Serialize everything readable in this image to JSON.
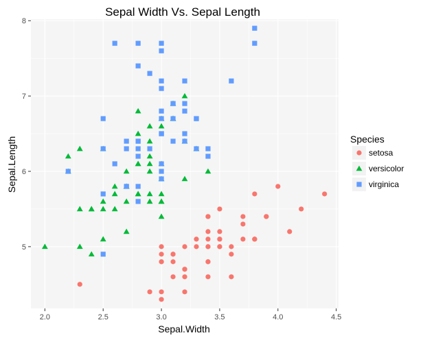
{
  "chart_data": {
    "type": "scatter",
    "title": "Sepal Width Vs. Sepal Length",
    "xlabel": "Sepal.Width",
    "ylabel": "Sepal.Length",
    "xlim": [
      1.88,
      4.52
    ],
    "ylim": [
      4.18,
      8.02
    ],
    "xticks": [
      2.0,
      2.5,
      3.0,
      3.5,
      4.0,
      4.5
    ],
    "xtick_labels": [
      "2.0",
      "2.5",
      "3.0",
      "3.5",
      "4.0",
      "4.5"
    ],
    "yticks": [
      5,
      6,
      7,
      8
    ],
    "ytick_labels": [
      "5",
      "6",
      "7",
      "8"
    ],
    "grid": true,
    "panel_background": "#f5f5f5",
    "grid_color": "#ffffff",
    "legend": {
      "title": "Species",
      "position": "right"
    },
    "series": [
      {
        "name": "setosa",
        "marker": "circle",
        "color": "#F8766D",
        "points": [
          [
            3.5,
            5.1
          ],
          [
            3.0,
            4.9
          ],
          [
            3.2,
            4.7
          ],
          [
            3.1,
            4.6
          ],
          [
            3.6,
            5.0
          ],
          [
            3.9,
            5.4
          ],
          [
            3.4,
            4.6
          ],
          [
            3.4,
            5.0
          ],
          [
            2.9,
            4.4
          ],
          [
            3.1,
            4.9
          ],
          [
            3.7,
            5.4
          ],
          [
            3.4,
            4.8
          ],
          [
            3.0,
            4.8
          ],
          [
            3.0,
            4.3
          ],
          [
            4.0,
            5.8
          ],
          [
            4.4,
            5.7
          ],
          [
            3.9,
            5.4
          ],
          [
            3.5,
            5.1
          ],
          [
            3.8,
            5.7
          ],
          [
            3.8,
            5.1
          ],
          [
            3.4,
            5.4
          ],
          [
            3.7,
            5.1
          ],
          [
            3.6,
            4.6
          ],
          [
            3.3,
            5.1
          ],
          [
            3.4,
            4.8
          ],
          [
            3.0,
            5.0
          ],
          [
            3.4,
            5.0
          ],
          [
            3.5,
            5.2
          ],
          [
            3.4,
            5.2
          ],
          [
            3.2,
            4.7
          ],
          [
            3.1,
            4.8
          ],
          [
            3.4,
            5.4
          ],
          [
            4.1,
            5.2
          ],
          [
            4.2,
            5.5
          ],
          [
            3.1,
            4.9
          ],
          [
            3.2,
            5.0
          ],
          [
            3.5,
            5.5
          ],
          [
            3.6,
            4.9
          ],
          [
            3.0,
            4.4
          ],
          [
            3.4,
            5.1
          ],
          [
            3.5,
            5.0
          ],
          [
            2.3,
            4.5
          ],
          [
            3.2,
            4.4
          ],
          [
            3.5,
            5.0
          ],
          [
            3.8,
            5.1
          ],
          [
            3.0,
            4.8
          ],
          [
            3.8,
            5.1
          ],
          [
            3.2,
            4.6
          ],
          [
            3.7,
            5.3
          ],
          [
            3.3,
            5.0
          ]
        ]
      },
      {
        "name": "versicolor",
        "marker": "triangle",
        "color": "#00BA38",
        "points": [
          [
            3.2,
            7.0
          ],
          [
            3.2,
            6.4
          ],
          [
            3.1,
            6.9
          ],
          [
            2.3,
            5.5
          ],
          [
            2.8,
            6.5
          ],
          [
            2.8,
            5.7
          ],
          [
            3.3,
            6.3
          ],
          [
            2.4,
            4.9
          ],
          [
            2.9,
            6.6
          ],
          [
            2.7,
            5.2
          ],
          [
            2.0,
            5.0
          ],
          [
            3.0,
            5.9
          ],
          [
            2.2,
            6.0
          ],
          [
            2.9,
            6.1
          ],
          [
            2.9,
            5.6
          ],
          [
            3.1,
            6.7
          ],
          [
            3.0,
            5.6
          ],
          [
            2.7,
            5.8
          ],
          [
            2.2,
            6.2
          ],
          [
            2.5,
            5.6
          ],
          [
            3.2,
            5.9
          ],
          [
            2.8,
            6.1
          ],
          [
            2.5,
            6.3
          ],
          [
            2.8,
            6.1
          ],
          [
            2.9,
            6.4
          ],
          [
            3.0,
            6.6
          ],
          [
            2.8,
            6.8
          ],
          [
            3.0,
            6.7
          ],
          [
            2.9,
            6.0
          ],
          [
            2.6,
            5.7
          ],
          [
            2.4,
            5.5
          ],
          [
            2.4,
            5.5
          ],
          [
            2.7,
            5.8
          ],
          [
            2.7,
            6.0
          ],
          [
            3.0,
            5.4
          ],
          [
            3.4,
            6.0
          ],
          [
            3.1,
            6.7
          ],
          [
            2.3,
            6.3
          ],
          [
            3.0,
            5.6
          ],
          [
            2.5,
            5.5
          ],
          [
            2.6,
            5.5
          ],
          [
            3.0,
            6.1
          ],
          [
            2.6,
            5.8
          ],
          [
            2.3,
            5.0
          ],
          [
            2.7,
            5.6
          ],
          [
            3.0,
            5.7
          ],
          [
            2.9,
            5.7
          ],
          [
            2.9,
            6.2
          ],
          [
            2.5,
            5.1
          ],
          [
            2.8,
            5.7
          ]
        ]
      },
      {
        "name": "virginica",
        "marker": "square",
        "color": "#619CFF",
        "points": [
          [
            3.3,
            6.3
          ],
          [
            2.7,
            5.8
          ],
          [
            3.0,
            7.1
          ],
          [
            2.9,
            6.3
          ],
          [
            3.0,
            6.5
          ],
          [
            3.0,
            7.6
          ],
          [
            2.5,
            4.9
          ],
          [
            2.9,
            7.3
          ],
          [
            2.5,
            6.7
          ],
          [
            3.6,
            7.2
          ],
          [
            3.2,
            6.5
          ],
          [
            2.7,
            6.4
          ],
          [
            3.0,
            6.8
          ],
          [
            2.5,
            5.7
          ],
          [
            2.8,
            5.8
          ],
          [
            3.2,
            6.4
          ],
          [
            3.0,
            6.5
          ],
          [
            3.8,
            7.7
          ],
          [
            2.6,
            7.7
          ],
          [
            2.2,
            6.0
          ],
          [
            3.2,
            6.9
          ],
          [
            2.8,
            5.6
          ],
          [
            2.8,
            7.7
          ],
          [
            2.7,
            6.3
          ],
          [
            3.3,
            6.7
          ],
          [
            3.2,
            7.2
          ],
          [
            2.8,
            6.2
          ],
          [
            3.0,
            6.1
          ],
          [
            2.8,
            6.4
          ],
          [
            3.0,
            7.2
          ],
          [
            2.8,
            7.4
          ],
          [
            3.8,
            7.9
          ],
          [
            2.8,
            6.4
          ],
          [
            2.8,
            6.3
          ],
          [
            2.6,
            6.1
          ],
          [
            3.0,
            7.7
          ],
          [
            3.4,
            6.3
          ],
          [
            3.1,
            6.4
          ],
          [
            3.0,
            6.0
          ],
          [
            3.1,
            6.9
          ],
          [
            3.1,
            6.7
          ],
          [
            3.1,
            6.9
          ],
          [
            2.7,
            5.8
          ],
          [
            3.2,
            6.8
          ],
          [
            3.3,
            6.7
          ],
          [
            3.0,
            6.7
          ],
          [
            2.5,
            6.3
          ],
          [
            3.0,
            6.5
          ],
          [
            3.4,
            6.2
          ],
          [
            3.0,
            5.9
          ]
        ]
      }
    ]
  }
}
